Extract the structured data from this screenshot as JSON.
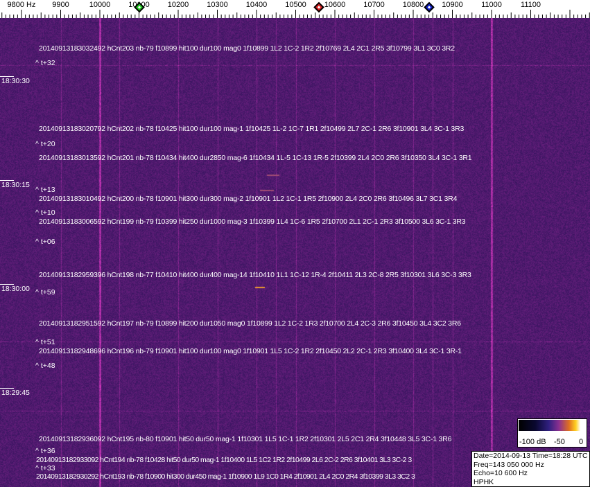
{
  "axis": {
    "unit_label": "9800 Hz",
    "labels": [
      "9900",
      "10000",
      "10100",
      "10200",
      "10300",
      "10400",
      "10500",
      "10600",
      "10700",
      "10800",
      "10900",
      "11000",
      "11100"
    ]
  },
  "markers": [
    {
      "name": "green-marker",
      "freq_hz": 10100,
      "color": "#22cc22"
    },
    {
      "name": "red-marker",
      "freq_hz": 10560,
      "color": "#dd2222"
    },
    {
      "name": "blue-marker",
      "freq_hz": 10840,
      "color": "#1020cc"
    }
  ],
  "time_labels": [
    "18:30:30",
    "18:30:15",
    "18:30:00",
    "18:29:45"
  ],
  "annotations": [
    "20140913183032492 hCnt203 nb-79 f10899 hit100 dur100 mag0 1f10899 1L2 1C-2 1R2 2f10769 2L4 2C1 2R5 3f10799 3L1 3C0 3R2",
    "20140913183020792 hCnt202 nb-78 f10425 hit100 dur100 mag-1 1f10425 1L-2 1C-7 1R1 2f10499 2L7 2C-1 2R6 3f10901 3L4 3C-1 3R3",
    "20140913183013592 hCnt201 nb-78 f10434 hit400 dur2850 mag-6 1f10434 1L-5 1C-13 1R-5 2f10399 2L4 2C0 2R6 3f10350 3L4 3C-1 3R1",
    "20140913183010492 hCnt200 nb-78 f10901 hit300 dur300 mag-2 1f10901 1L2 1C-1 1R5 2f10900 2L4 2C0 2R6 3f10496 3L7 3C1 3R4",
    "20140913183006592 hCnt199 nb-79 f10399 hit250 dur1000 mag-3 1f10399 1L4 1C-6 1R5 2f10700 2L1 2C-1 2R3 3f10500 3L6 3C-1 3R3",
    "20140913182959396 hCnt198 nb-77 f10410 hit400 dur400 mag-14 1f10410 1L1 1C-12 1R-4 2f10411 2L3 2C-8 2R5 3f10301 3L6 3C-3 3R3",
    "20140913182951592 hCnt197 nb-79 f10899 hit200 dur1050 mag0 1f10899 1L2 1C-2 1R3 2f10700 2L4 2C-3 2R6 3f10450 3L4 3C2 3R6",
    "20140913182948696 hCnt196 nb-79 f10901 hit100 dur100 mag0 1f10901 1L5 1C-2 1R2 2f10450 2L2 2C-1 2R3 3f10400 3L4 3C-1 3R-1",
    "20140913182936092 hCnt195 nb-80 f10901 hit50 dur50 mag-1 1f10301 1L5 1C-1 1R2 2f10301 2L5 2C1 2R4 3f10448 3L5 3C-1 3R6",
    "20140913182933092 hCnt194 nb-78 f10428 hit50 dur50 mag-1 1f10400 1L5 1C2 1R2 2f10499 2L6 2C-2 2R6 3f10401 3L3 3C-2 3",
    "20140913182930292 hCnt193 nb-78 f10900 hit300 dur450 mag-1 1f10900 1L9 1C0 1R4 2f10901 2L4 2C0 2R4 3f10399 3L3 3C2 3"
  ],
  "offsets": [
    "^ t+32",
    "^ t+20",
    "^ t+13",
    "^ t+10",
    "^ t+06",
    "^ t+59",
    "^ t+51",
    "^ t+48",
    "^ t+36",
    "^ t+33"
  ],
  "colorbar": {
    "labels": [
      "-100 dB",
      "-50",
      "0"
    ]
  },
  "info": {
    "line1": "Date=2014-09-13 Time=18:28 UTC",
    "line2": "Freq=143 050 000 Hz",
    "line3": "Echo=10 600 Hz",
    "line4": "HPHK"
  },
  "colors": {
    "background": "#2a1c6e",
    "strong_line": "#c04060",
    "weak_line": "#7a3590"
  }
}
